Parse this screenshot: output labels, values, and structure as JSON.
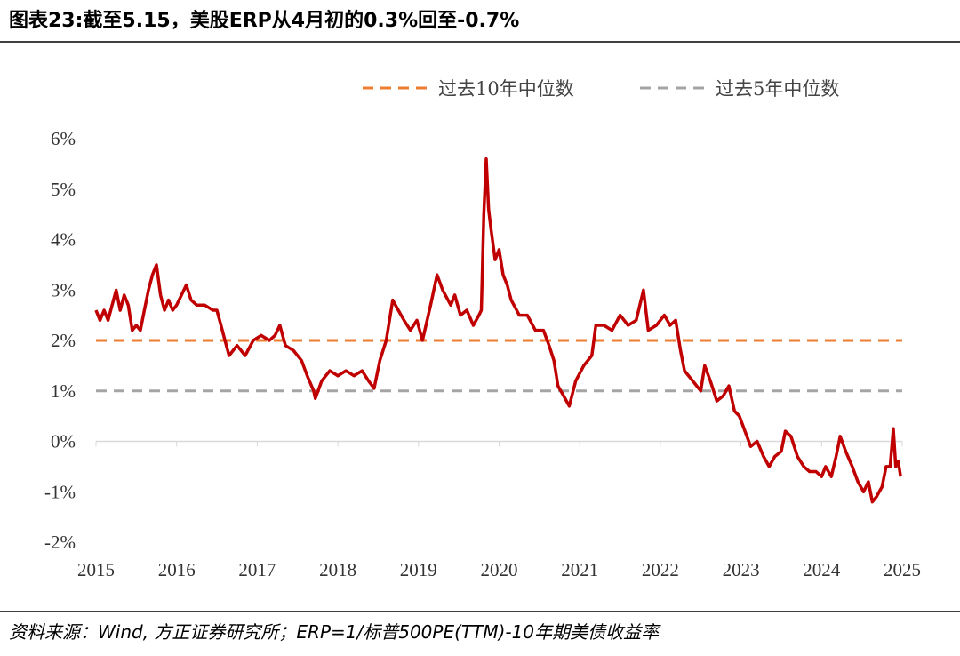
{
  "chart_data": {
    "type": "line",
    "title": "图表23:截至5.15，美股ERP从4月初的0.3%回至-0.7%",
    "source": "资料来源：Wind, 方正证券研究所；ERP=1/标普500PE(TTM)-10年期美债收益率",
    "xlim": [
      2015,
      2025
    ],
    "xticks": [
      2015,
      2016,
      2017,
      2018,
      2019,
      2020,
      2021,
      2022,
      2023,
      2024,
      2025
    ],
    "ylim": [
      -2,
      6
    ],
    "yticks": [
      {
        "value": -2,
        "label": "-2%"
      },
      {
        "value": -1,
        "label": "-1%"
      },
      {
        "value": 0,
        "label": "0%"
      },
      {
        "value": 1,
        "label": "1%"
      },
      {
        "value": 2,
        "label": "2%"
      },
      {
        "value": 3,
        "label": "3%"
      },
      {
        "value": 4,
        "label": "4%"
      },
      {
        "value": 5,
        "label": "5%"
      },
      {
        "value": 6,
        "label": "6%"
      }
    ],
    "x": [
      2015.0,
      2015.05,
      2015.1,
      2015.15,
      2015.2,
      2015.25,
      2015.3,
      2015.35,
      2015.4,
      2015.45,
      2015.5,
      2015.55,
      2015.6,
      2015.65,
      2015.7,
      2015.75,
      2015.8,
      2015.85,
      2015.9,
      2015.95,
      2016.0,
      2016.12,
      2016.18,
      2016.25,
      2016.35,
      2016.45,
      2016.5,
      2016.55,
      2016.6,
      2016.65,
      2016.75,
      2016.85,
      2016.95,
      2017.05,
      2017.15,
      2017.22,
      2017.28,
      2017.35,
      2017.45,
      2017.55,
      2017.62,
      2017.7,
      2017.72,
      2017.8,
      2017.9,
      2018.0,
      2018.1,
      2018.2,
      2018.3,
      2018.38,
      2018.45,
      2018.52,
      2018.6,
      2018.68,
      2018.75,
      2018.82,
      2018.9,
      2018.98,
      2019.05,
      2019.15,
      2019.23,
      2019.3,
      2019.4,
      2019.45,
      2019.52,
      2019.6,
      2019.68,
      2019.75,
      2019.78,
      2019.81,
      2019.84,
      2019.87,
      2019.9,
      2019.95,
      2020.0,
      2020.05,
      2020.1,
      2020.15,
      2020.25,
      2020.35,
      2020.45,
      2020.55,
      2020.62,
      2020.68,
      2020.73,
      2020.8,
      2020.87,
      2020.95,
      2021.05,
      2021.15,
      2021.2,
      2021.3,
      2021.4,
      2021.5,
      2021.6,
      2021.7,
      2021.79,
      2021.85,
      2021.95,
      2022.05,
      2022.12,
      2022.19,
      2022.25,
      2022.3,
      2022.4,
      2022.5,
      2022.55,
      2022.62,
      2022.7,
      2022.78,
      2022.85,
      2022.92,
      2022.98,
      2023.05,
      2023.12,
      2023.2,
      2023.28,
      2023.35,
      2023.42,
      2023.5,
      2023.55,
      2023.62,
      2023.7,
      2023.78,
      2023.85,
      2023.93,
      2024.0,
      2024.05,
      2024.12,
      2024.18,
      2024.23,
      2024.3,
      2024.38,
      2024.45,
      2024.52,
      2024.58,
      2024.63,
      2024.68,
      2024.75,
      2024.8,
      2024.85,
      2024.89,
      2024.92,
      2024.95,
      2024.98
    ],
    "series": [
      {
        "color": "#c00000",
        "values": [
          2.6,
          2.4,
          2.6,
          2.4,
          2.7,
          3.0,
          2.6,
          2.9,
          2.7,
          2.2,
          2.3,
          2.2,
          2.6,
          3.0,
          3.3,
          3.5,
          2.9,
          2.6,
          2.8,
          2.6,
          2.7,
          3.1,
          2.8,
          2.7,
          2.7,
          2.6,
          2.6,
          2.3,
          2.0,
          1.7,
          1.9,
          1.7,
          2.0,
          2.1,
          2.0,
          2.1,
          2.3,
          1.9,
          1.8,
          1.6,
          1.3,
          1.0,
          0.85,
          1.2,
          1.4,
          1.3,
          1.4,
          1.3,
          1.4,
          1.2,
          1.05,
          1.6,
          2.0,
          2.8,
          2.6,
          2.4,
          2.2,
          2.4,
          2.0,
          2.7,
          3.3,
          3.0,
          2.7,
          2.9,
          2.5,
          2.6,
          2.3,
          2.5,
          2.6,
          4.5,
          5.6,
          4.6,
          4.2,
          3.6,
          3.8,
          3.3,
          3.1,
          2.8,
          2.5,
          2.5,
          2.2,
          2.2,
          1.9,
          1.6,
          1.1,
          0.9,
          0.7,
          1.2,
          1.5,
          1.7,
          2.3,
          2.3,
          2.2,
          2.5,
          2.3,
          2.4,
          3.0,
          2.2,
          2.3,
          2.5,
          2.3,
          2.4,
          1.8,
          1.4,
          1.2,
          1.0,
          1.5,
          1.2,
          0.8,
          0.9,
          1.1,
          0.6,
          0.5,
          0.2,
          -0.1,
          0.0,
          -0.3,
          -0.5,
          -0.3,
          -0.2,
          0.2,
          0.1,
          -0.3,
          -0.5,
          -0.6,
          -0.6,
          -0.7,
          -0.5,
          -0.7,
          -0.3,
          0.1,
          -0.2,
          -0.5,
          -0.8,
          -1.0,
          -0.8,
          -1.2,
          -1.1,
          -0.9,
          -0.5,
          -0.5,
          0.25,
          -0.5,
          -0.4,
          -0.7
        ]
      }
    ],
    "reference_lines": [
      {
        "name": "过去10年中位数",
        "value": 2,
        "color": "#ed7d31"
      },
      {
        "name": "过去5年中位数",
        "value": 1,
        "color": "#a5a5a5"
      }
    ]
  }
}
